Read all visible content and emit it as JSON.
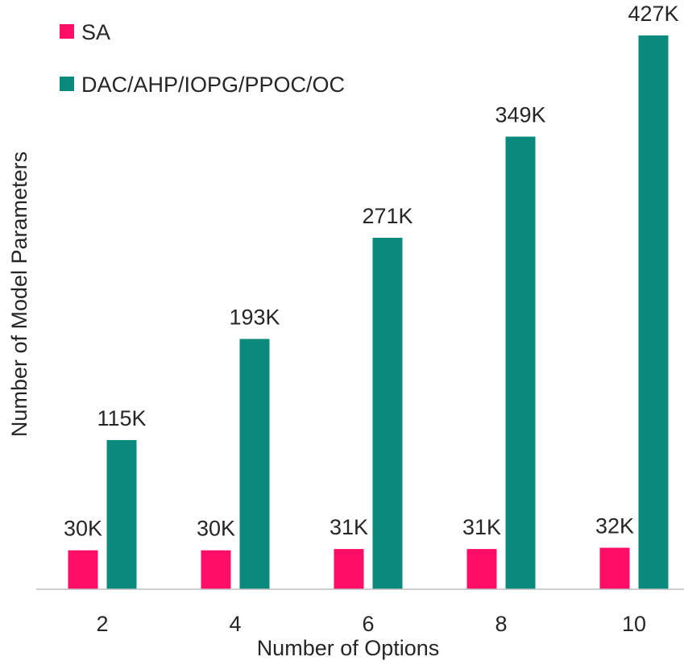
{
  "chart_data": {
    "type": "bar",
    "title": "",
    "xlabel": "Number of Options",
    "ylabel": "Number of Model Parameters",
    "categories": [
      "2",
      "4",
      "6",
      "8",
      "10"
    ],
    "series": [
      {
        "name": "SA",
        "color": "#FF0D66",
        "values": [
          30000,
          30000,
          31000,
          31000,
          32000
        ],
        "labels": [
          "30K",
          "30K",
          "31K",
          "31K",
          "32K"
        ]
      },
      {
        "name": "DAC/AHP/IOPG/PPOC/OC",
        "color": "#0A8A7C",
        "values": [
          115000,
          193000,
          271000,
          349000,
          427000
        ],
        "labels": [
          "115K",
          "193K",
          "271K",
          "349K",
          "427K"
        ]
      }
    ],
    "ylim": [
      0,
      440000
    ],
    "grid": false,
    "legend": "top-left",
    "axis_color": "#BFBFBF"
  }
}
